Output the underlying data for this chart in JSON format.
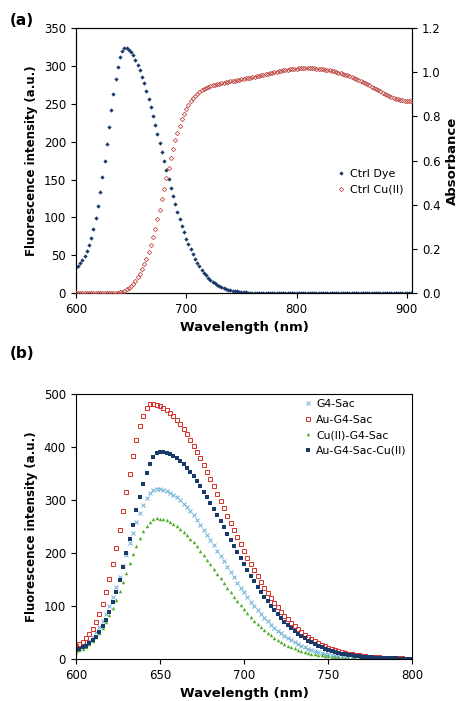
{
  "panel_a": {
    "ctrl_dye": {
      "color": "#1a3a6b",
      "label": "Ctrl Dye"
    },
    "ctrl_cu": {
      "color": "#c0504d",
      "label": "Ctrl Cu(II)"
    },
    "ylabel_left": "Fluorescence intensity (a.u.)",
    "ylabel_right": "Absorbance",
    "xlabel": "Wavelength (nm)",
    "ylim_left": [
      0,
      350
    ],
    "ylim_right": [
      0.0,
      1.2
    ],
    "xlim": [
      600,
      905
    ],
    "yticks_left": [
      0,
      50,
      100,
      150,
      200,
      250,
      300,
      350
    ],
    "yticks_right": [
      0.0,
      0.2,
      0.4,
      0.6,
      0.8,
      1.0,
      1.2
    ],
    "xticks": [
      600,
      700,
      800,
      900
    ]
  },
  "panel_b": {
    "g4sac": {
      "color": "#6baed6",
      "label": "G4-Sac"
    },
    "au_g4sac": {
      "color": "#d73027",
      "label": "Au-G4-Sac"
    },
    "cu_g4sac": {
      "color": "#4dac26",
      "label": "Cu(II)-G4-Sac"
    },
    "au_g4sac_cu": {
      "color": "#1a3a6b",
      "label": "Au-G4-Sac-Cu(II)"
    },
    "ylabel": "Fluorescence intensity (a.u.)",
    "xlabel": "Wavelength (nm)",
    "ylim": [
      0,
      500
    ],
    "xlim": [
      600,
      800
    ],
    "yticks": [
      0,
      100,
      200,
      300,
      400,
      500
    ],
    "xticks": [
      600,
      650,
      700,
      750,
      800
    ]
  }
}
